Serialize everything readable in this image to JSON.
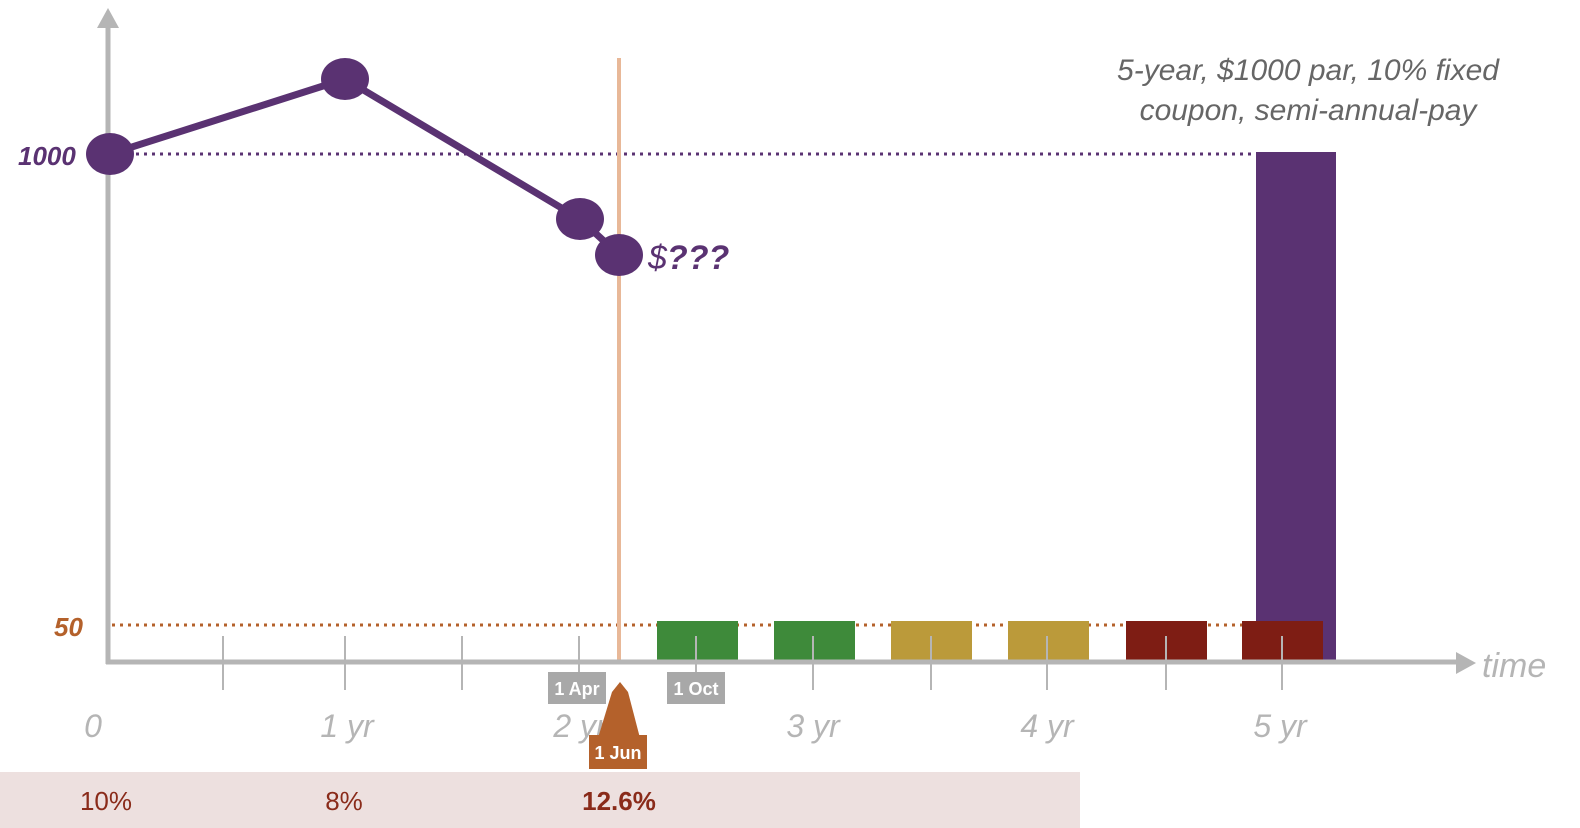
{
  "caption": {
    "line1": "5-year, $1000 par, 10% fixed",
    "line2": "coupon, semi-annual-pay"
  },
  "y_labels": {
    "par": "1000",
    "coupon": "50"
  },
  "x_axis": {
    "label": "time",
    "ticks": [
      "0",
      "1 yr",
      "2 yr",
      "3 yr",
      "4 yr",
      "5 yr"
    ]
  },
  "date_tags": {
    "apr": "1 Apr",
    "oct": "1 Oct",
    "jun": "1 Jun"
  },
  "price_label": {
    "dollar": "$",
    "unknown": "???"
  },
  "rates": [
    {
      "value": "10%",
      "bold": false
    },
    {
      "value": "8%",
      "bold": false
    },
    {
      "value": "12.6%",
      "bold": true
    }
  ],
  "colors": {
    "purple": "#5a3272",
    "coupon_orange": "#b4612b",
    "now_line": "#e8b898",
    "green": "#3e8a3a",
    "gold": "#bb9a3a",
    "red": "#7e1d14",
    "tag_gray": "#a8a8a8",
    "rate_band": "#ede0df",
    "axis": "#b5b5b5"
  },
  "chart_data": {
    "type": "line",
    "x_unit": "years",
    "price_path": [
      {
        "t": 0,
        "price": 1000
      },
      {
        "t": 1,
        "price": 1093
      },
      {
        "t": 2,
        "price": 893
      },
      {
        "t": 2.17,
        "price": "$???"
      }
    ],
    "coupon_payments": [
      {
        "t": 2.5,
        "amount": 50,
        "color": "green"
      },
      {
        "t": 3.0,
        "amount": 50,
        "color": "green"
      },
      {
        "t": 3.5,
        "amount": 50,
        "color": "gold"
      },
      {
        "t": 4.0,
        "amount": 50,
        "color": "gold"
      },
      {
        "t": 4.5,
        "amount": 50,
        "color": "red"
      },
      {
        "t": 5.0,
        "amount": 50,
        "color": "red"
      }
    ],
    "principal_payment": {
      "t": 5.0,
      "amount": 1000
    },
    "now_marker_t": 2.17
  }
}
